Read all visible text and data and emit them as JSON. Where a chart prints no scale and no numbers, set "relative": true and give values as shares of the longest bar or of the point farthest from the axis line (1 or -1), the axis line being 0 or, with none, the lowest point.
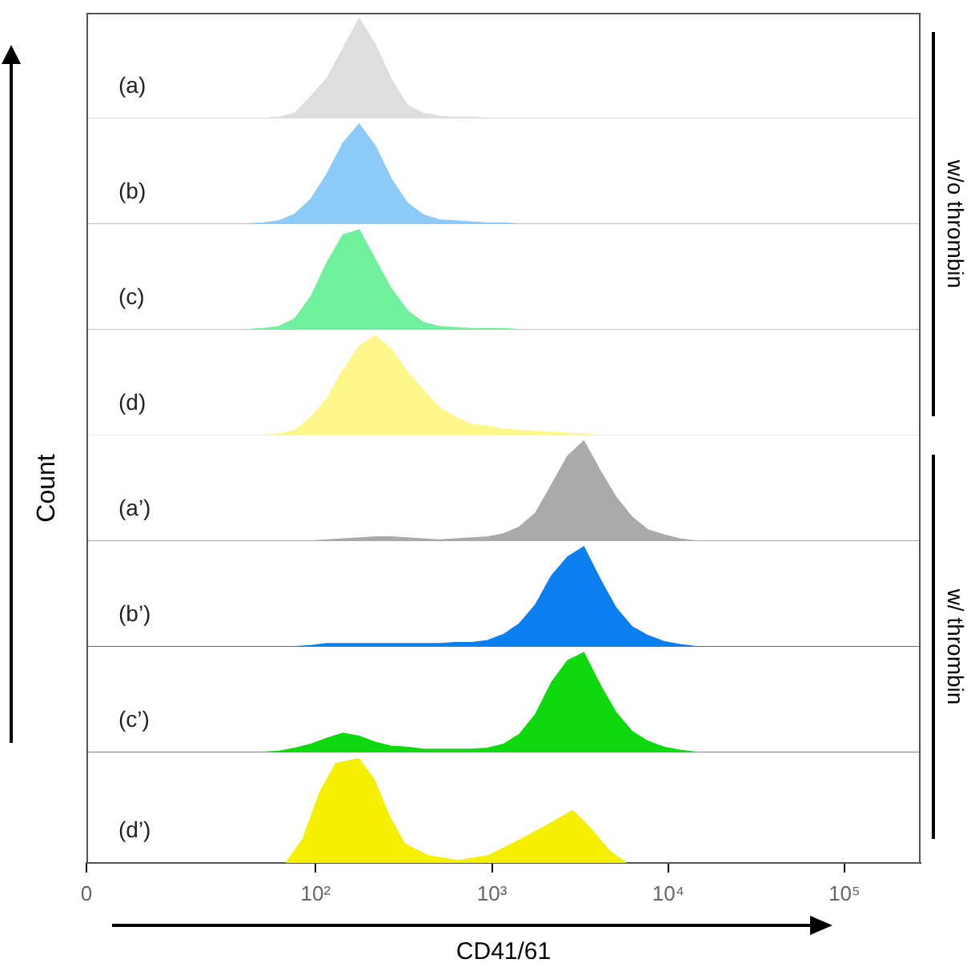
{
  "chart_data": [
    {
      "type": "area",
      "relative": true,
      "tick_labels": false,
      "annotations": [
        "w/o thrombin"
      ],
      "categories": [
        null,
        null,
        null,
        null,
        null,
        null,
        null,
        null,
        null,
        null,
        null,
        null,
        null,
        null,
        null,
        null,
        null,
        null,
        null,
        null,
        null,
        null,
        null,
        null,
        null,
        null,
        null,
        null,
        null,
        null,
        null,
        null,
        null,
        null,
        null,
        null,
        null,
        null,
        null,
        null,
        null,
        null,
        null,
        null,
        null,
        null,
        null,
        null,
        null,
        null,
        null,
        null,
        null
      ],
      "series": [
        {
          "name": "(a)",
          "color": "#dedede",
          "values": [
            0,
            0,
            0,
            0,
            0,
            0,
            0,
            0,
            0,
            0,
            0,
            0,
            0.01,
            0.05,
            0.22,
            0.4,
            0.7,
            1,
            0.74,
            0.39,
            0.13,
            0.05,
            0.02,
            0.01,
            0.01,
            0,
            0,
            0,
            0,
            0,
            0,
            0,
            0,
            0,
            0,
            0,
            0,
            0,
            0,
            0,
            0,
            0,
            0,
            0,
            0,
            0,
            0,
            0,
            0,
            0,
            0,
            0,
            0
          ]
        }
      ]
    },
    {
      "type": "area",
      "relative": true,
      "tick_labels": false,
      "categories": [
        null,
        null,
        null,
        null,
        null,
        null,
        null,
        null,
        null,
        null,
        null,
        null,
        null,
        null,
        null,
        null,
        null,
        null,
        null,
        null,
        null,
        null,
        null,
        null,
        null,
        null,
        null,
        null,
        null,
        null,
        null,
        null,
        null,
        null,
        null,
        null,
        null,
        null,
        null,
        null,
        null,
        null,
        null,
        null,
        null,
        null,
        null,
        null,
        null,
        null,
        null,
        null,
        null
      ],
      "series": [
        {
          "name": "(b)",
          "color": "#8ccbf7",
          "values": [
            0,
            0,
            0,
            0,
            0,
            0,
            0,
            0,
            0,
            0,
            0,
            0.01,
            0.03,
            0.1,
            0.25,
            0.5,
            0.81,
            1,
            0.78,
            0.45,
            0.21,
            0.09,
            0.04,
            0.03,
            0.02,
            0.01,
            0.01,
            0,
            0,
            0,
            0,
            0,
            0,
            0,
            0,
            0,
            0,
            0,
            0,
            0,
            0,
            0,
            0,
            0,
            0,
            0,
            0,
            0,
            0,
            0,
            0,
            0,
            0
          ]
        }
      ]
    },
    {
      "type": "area",
      "relative": true,
      "tick_labels": false,
      "categories": [
        null,
        null,
        null,
        null,
        null,
        null,
        null,
        null,
        null,
        null,
        null,
        null,
        null,
        null,
        null,
        null,
        null,
        null,
        null,
        null,
        null,
        null,
        null,
        null,
        null,
        null,
        null,
        null,
        null,
        null,
        null,
        null,
        null,
        null,
        null,
        null,
        null,
        null,
        null,
        null,
        null,
        null,
        null,
        null,
        null,
        null,
        null,
        null,
        null,
        null,
        null,
        null,
        null
      ],
      "series": [
        {
          "name": "(c)",
          "color": "#6ef09c",
          "values": [
            0,
            0,
            0,
            0,
            0,
            0,
            0,
            0,
            0,
            0,
            0,
            0.01,
            0.03,
            0.11,
            0.33,
            0.67,
            0.95,
            1,
            0.7,
            0.41,
            0.19,
            0.07,
            0.03,
            0.02,
            0.01,
            0.01,
            0.01,
            0,
            0,
            0,
            0,
            0,
            0,
            0,
            0,
            0,
            0,
            0,
            0,
            0,
            0,
            0,
            0,
            0,
            0,
            0,
            0,
            0,
            0,
            0,
            0,
            0,
            0
          ]
        }
      ]
    },
    {
      "type": "area",
      "relative": true,
      "tick_labels": false,
      "categories": [
        null,
        null,
        null,
        null,
        null,
        null,
        null,
        null,
        null,
        null,
        null,
        null,
        null,
        null,
        null,
        null,
        null,
        null,
        null,
        null,
        null,
        null,
        null,
        null,
        null,
        null,
        null,
        null,
        null,
        null,
        null,
        null,
        null,
        null,
        null,
        null,
        null,
        null,
        null,
        null,
        null,
        null,
        null,
        null,
        null,
        null,
        null,
        null,
        null,
        null,
        null,
        null,
        null
      ],
      "series": [
        {
          "name": "(d)",
          "color": "#fff78a",
          "values": [
            0,
            0,
            0,
            0,
            0,
            0,
            0,
            0,
            0,
            0,
            0,
            0,
            0.01,
            0.05,
            0.18,
            0.37,
            0.65,
            0.89,
            1,
            0.86,
            0.64,
            0.45,
            0.28,
            0.18,
            0.11,
            0.09,
            0.06,
            0.05,
            0.04,
            0.03,
            0.02,
            0.01,
            0,
            0,
            0,
            0,
            0,
            0,
            0,
            0,
            0,
            0,
            0,
            0,
            0,
            0,
            0,
            0,
            0,
            0,
            0,
            0,
            0
          ]
        }
      ]
    },
    {
      "type": "area",
      "relative": true,
      "tick_labels": false,
      "ylabel": "Count",
      "annotations": [
        "w/ thrombin"
      ],
      "categories": [
        null,
        null,
        null,
        null,
        null,
        null,
        null,
        null,
        null,
        null,
        null,
        null,
        null,
        null,
        null,
        null,
        null,
        null,
        null,
        null,
        null,
        null,
        null,
        null,
        null,
        null,
        null,
        null,
        null,
        null,
        null,
        null,
        null,
        null,
        null,
        null,
        null,
        null,
        null,
        null,
        null,
        null,
        null,
        null,
        null,
        null,
        null,
        null,
        null,
        null,
        null,
        null,
        null
      ],
      "series": [
        {
          "name": "(a’)",
          "color": "#aaaaaa",
          "values": [
            0,
            0,
            0,
            0,
            0,
            0,
            0,
            0,
            0,
            0,
            0,
            0,
            0,
            0,
            0,
            0.01,
            0.02,
            0.03,
            0.04,
            0.04,
            0.03,
            0.02,
            0.01,
            0.02,
            0.03,
            0.04,
            0.07,
            0.14,
            0.28,
            0.56,
            0.85,
            1,
            0.71,
            0.44,
            0.24,
            0.11,
            0.06,
            0.02,
            0,
            0,
            0,
            0,
            0,
            0,
            0,
            0,
            0,
            0,
            0,
            0,
            0,
            0,
            0
          ]
        }
      ]
    },
    {
      "type": "area",
      "relative": true,
      "tick_labels": false,
      "categories": [
        null,
        null,
        null,
        null,
        null,
        null,
        null,
        null,
        null,
        null,
        null,
        null,
        null,
        null,
        null,
        null,
        null,
        null,
        null,
        null,
        null,
        null,
        null,
        null,
        null,
        null,
        null,
        null,
        null,
        null,
        null,
        null,
        null,
        null,
        null,
        null,
        null,
        null,
        null,
        null,
        null,
        null,
        null,
        null,
        null,
        null,
        null,
        null,
        null,
        null,
        null,
        null,
        null
      ],
      "series": [
        {
          "name": "(b’)",
          "color": "#0a7ff0",
          "values": [
            0,
            0,
            0,
            0,
            0,
            0,
            0,
            0,
            0,
            0,
            0,
            0,
            0,
            0,
            0.01,
            0.03,
            0.03,
            0.03,
            0.03,
            0.03,
            0.03,
            0.03,
            0.03,
            0.04,
            0.04,
            0.06,
            0.12,
            0.23,
            0.42,
            0.71,
            0.9,
            1,
            0.68,
            0.39,
            0.2,
            0.11,
            0.05,
            0.02,
            0,
            0,
            0,
            0,
            0,
            0,
            0,
            0,
            0,
            0,
            0,
            0,
            0,
            0,
            0
          ]
        }
      ]
    },
    {
      "type": "area",
      "relative": true,
      "tick_labels": false,
      "categories": [
        null,
        null,
        null,
        null,
        null,
        null,
        null,
        null,
        null,
        null,
        null,
        null,
        null,
        null,
        null,
        null,
        null,
        null,
        null,
        null,
        null,
        null,
        null,
        null,
        null,
        null,
        null,
        null,
        null,
        null,
        null,
        null,
        null,
        null,
        null,
        null,
        null,
        null,
        null,
        null,
        null,
        null,
        null,
        null,
        null,
        null,
        null,
        null,
        null,
        null,
        null,
        null,
        null
      ],
      "series": [
        {
          "name": "(c’)",
          "color": "#0ed90e",
          "values": [
            0,
            0,
            0,
            0,
            0,
            0,
            0,
            0,
            0,
            0,
            0,
            0,
            0.01,
            0.04,
            0.08,
            0.14,
            0.19,
            0.16,
            0.1,
            0.06,
            0.05,
            0.03,
            0.03,
            0.03,
            0.03,
            0.04,
            0.08,
            0.18,
            0.38,
            0.7,
            0.92,
            1,
            0.68,
            0.4,
            0.21,
            0.11,
            0.05,
            0.02,
            0,
            0,
            0,
            0,
            0,
            0,
            0,
            0,
            0,
            0,
            0,
            0,
            0,
            0,
            0
          ]
        }
      ]
    },
    {
      "type": "area",
      "relative": true,
      "tick_labels": "x",
      "log": "x",
      "xlim": [
        0,
        270000
      ],
      "xlabel": "CD41/61",
      "xticks": [
        {
          "value": 0,
          "label": "0"
        },
        {
          "value": 100,
          "label": "10²"
        },
        {
          "value": 1000,
          "label": "10³"
        },
        {
          "value": 10000,
          "label": "10⁴"
        },
        {
          "value": 100000,
          "label": "10⁵"
        }
      ],
      "series": [
        {
          "name": "(d’)",
          "color": "#f5f000",
          "x": [
            68,
            85,
            106,
            130,
            175,
            214,
            261,
            319,
            431,
            643,
            960,
            1480,
            2060,
            2870,
            3570,
            4650,
            5770
          ],
          "values": [
            0,
            0.23,
            0.68,
            0.95,
            1,
            0.8,
            0.45,
            0.18,
            0.07,
            0.02,
            0.07,
            0.23,
            0.36,
            0.5,
            0.34,
            0.11,
            0
          ]
        }
      ]
    }
  ]
}
